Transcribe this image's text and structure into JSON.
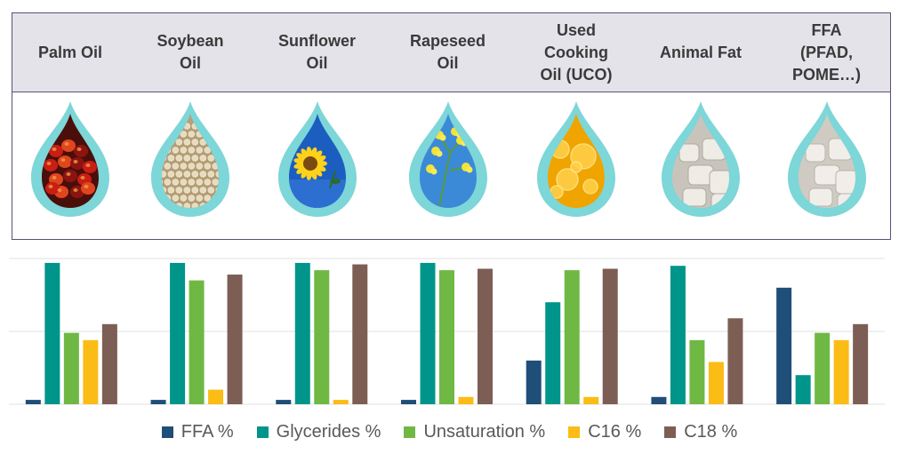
{
  "columns": [
    {
      "label": "Palm Oil",
      "image": "palm-fruit-drop"
    },
    {
      "label": "Soybean\nOil",
      "image": "soybeans-drop"
    },
    {
      "label": "Sunflower\nOil",
      "image": "sunflower-drop"
    },
    {
      "label": "Rapeseed\nOil",
      "image": "rapeseed-drop"
    },
    {
      "label": "Used\nCooking\nOil (UCO)",
      "image": "cooking-oil-drop"
    },
    {
      "label": "Animal Fat",
      "image": "animal-fat-drop"
    },
    {
      "label": "FFA\n(PFAD,\nPOME…)",
      "image": "ffa-drop"
    }
  ],
  "colors": {
    "ffa": "#1f4e79",
    "glycerides": "#00958a",
    "unsaturation": "#6fb844",
    "c16": "#fbbc16",
    "c18": "#7d5e54",
    "grid": "#e1e1e1",
    "drop_ring": "#7dd6d8"
  },
  "chart_data": {
    "type": "bar",
    "categories": [
      "Palm Oil",
      "Soybean Oil",
      "Sunflower Oil",
      "Rapeseed Oil",
      "Used Cooking Oil (UCO)",
      "Animal Fat",
      "FFA (PFAD, POME…)"
    ],
    "ylim": [
      0,
      100
    ],
    "grid": true,
    "legend_position": "bottom",
    "series": [
      {
        "name": "FFA %",
        "color": "#1f4e79",
        "values": [
          3,
          3,
          3,
          3,
          30,
          5,
          80
        ]
      },
      {
        "name": "Glycerides %",
        "color": "#00958a",
        "values": [
          97,
          97,
          97,
          97,
          70,
          95,
          20
        ]
      },
      {
        "name": "Unsaturation %",
        "color": "#6fb844",
        "values": [
          49,
          85,
          92,
          92,
          92,
          44,
          49
        ]
      },
      {
        "name": "C16 %",
        "color": "#fbbc16",
        "values": [
          44,
          10,
          3,
          5,
          5,
          29,
          44
        ]
      },
      {
        "name": "C18 %",
        "color": "#7d5e54",
        "values": [
          55,
          89,
          96,
          93,
          93,
          59,
          55
        ]
      }
    ]
  }
}
